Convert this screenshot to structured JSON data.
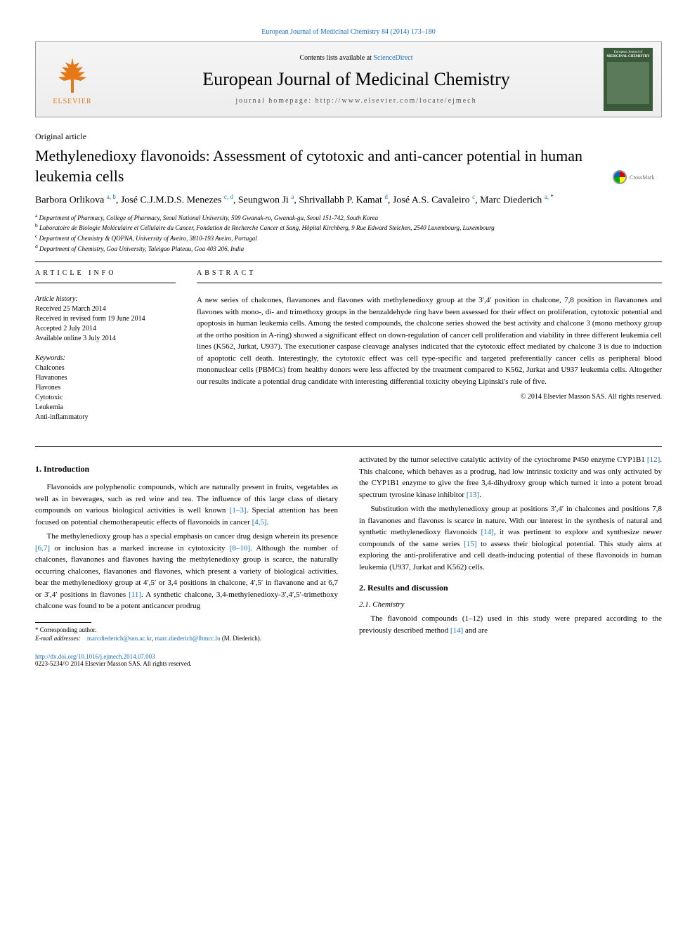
{
  "top_citation": {
    "text": "European Journal of Medicinal Chemistry 84 (2014) 173–180",
    "link_color": "#1a6eb8"
  },
  "header": {
    "elsevier_label": "ELSEVIER",
    "contents_prefix": "Contents lists available at ",
    "contents_link": "ScienceDirect",
    "journal_title": "European Journal of Medicinal Chemistry",
    "homepage_label": "journal homepage: http://www.elsevier.com/locate/ejmech",
    "cover_top": "European Journal of",
    "cover_mid": "MEDICINAL CHEMISTRY"
  },
  "article_type": "Original article",
  "title": "Methylenedioxy flavonoids: Assessment of cytotoxic and anti-cancer potential in human leukemia cells",
  "crossmark_label": "CrossMark",
  "authors_html": "Barbora Orlikova <sup>a, b</sup>, José C.J.M.D.S. Menezes <sup>c, d</sup>, Seungwon Ji <sup>a</sup>, Shrivallabh P. Kamat <sup>d</sup>, José A.S. Cavaleiro <sup>c</sup>, Marc Diederich <sup>a, <span class=\"star\">*</span></sup>",
  "affiliations": [
    {
      "sup": "a",
      "text": "Department of Pharmacy, College of Pharmacy, Seoul National University, 599 Gwanak-ro, Gwanak-gu, Seoul 151-742, South Korea"
    },
    {
      "sup": "b",
      "text": "Laboratoire de Biologie Moléculaire et Cellulaire du Cancer, Fondation de Recherche Cancer et Sang, Hôpital Kirchberg, 9 Rue Edward Steichen, 2540 Luxembourg, Luxembourg"
    },
    {
      "sup": "c",
      "text": "Department of Chemistry & QOPNA, University of Aveiro, 3810-193 Aveiro, Portugal"
    },
    {
      "sup": "d",
      "text": "Department of Chemistry, Goa University, Taleigao Plateau, Goa 403 206, India"
    }
  ],
  "article_info": {
    "heading": "ARTICLE INFO",
    "history_label": "Article history:",
    "history": [
      "Received 25 March 2014",
      "Received in revised form 19 June 2014",
      "Accepted 2 July 2014",
      "Available online 3 July 2014"
    ],
    "keywords_label": "Keywords:",
    "keywords": [
      "Chalcones",
      "Flavanones",
      "Flavones",
      "Cytotoxic",
      "Leukemia",
      "Anti-inflammatory"
    ]
  },
  "abstract": {
    "heading": "ABSTRACT",
    "text": "A new series of chalcones, flavanones and flavones with methylenedioxy group at the 3′,4′ position in chalcone, 7,8 position in flavanones and flavones with mono-, di- and trimethoxy groups in the benzaldehyde ring have been assessed for their effect on proliferation, cytotoxic potential and apoptosis in human leukemia cells. Among the tested compounds, the chalcone series showed the best activity and chalcone 3 (mono methoxy group at the ortho position in A-ring) showed a significant effect on down-regulation of cancer cell proliferation and viability in three different leukemia cell lines (K562, Jurkat, U937). The executioner caspase cleavage analyses indicated that the cytotoxic effect mediated by chalcone 3 is due to induction of apoptotic cell death. Interestingly, the cytotoxic effect was cell type-specific and targeted preferentially cancer cells as peripheral blood mononuclear cells (PBMCs) from healthy donors were less affected by the treatment compared to K562, Jurkat and U937 leukemia cells. Altogether our results indicate a potential drug candidate with interesting differential toxicity obeying Lipinski's rule of five.",
    "copyright": "© 2014 Elsevier Masson SAS. All rights reserved."
  },
  "body": {
    "left": {
      "sec1_heading": "1. Introduction",
      "p1": "Flavonoids are polyphenolic compounds, which are naturally present in fruits, vegetables as well as in beverages, such as red wine and tea. The influence of this large class of dietary compounds on various biological activities is well known ",
      "p1_ref": "[1–3]",
      "p1b": ". Special attention has been focused on potential chemotherapeutic effects of flavonoids in cancer ",
      "p1b_ref": "[4,5]",
      "p1c": ".",
      "p2": "The methylenedioxy group has a special emphasis on cancer drug design wherein its presence ",
      "p2_ref": "[6,7]",
      "p2b": " or inclusion has a marked increase in cytotoxicity ",
      "p2b_ref": "[8–10]",
      "p2c": ". Although the number of chalcones, flavanones and flavones having the methylenedioxy group is scarce, the naturally occurring chalcones, flavanones and flavones, which present a variety of biological activities, bear the methylenedioxy group at 4′,5′ or 3,4 positions in chalcone, 4′,5′ in flavanone and at 6,7 or 3′,4′ positions in flavones ",
      "p2c_ref": "[11]",
      "p2d": ". A synthetic chalcone, 3,4-methylenedioxy-3′,4′,5′-trimethoxy chalcone was found to be a potent anticancer prodrug"
    },
    "right": {
      "p1": "activated by the tumor selective catalytic activity of the cytochrome P450 enzyme CYP1B1 ",
      "p1_ref": "[12]",
      "p1b": ". This chalcone, which behaves as a prodrug, had low intrinsic toxicity and was only activated by the CYP1B1 enzyme to give the free 3,4-dihydroxy group which turned it into a potent broad spectrum tyrosine kinase inhibitor ",
      "p1b_ref": "[13]",
      "p1c": ".",
      "p2": "Substitution with the methylenedioxy group at positions 3′,4′ in chalcones and positions 7,8 in flavanones and flavones is scarce in nature. With our interest in the synthesis of natural and synthetic methylenedioxy flavonoids ",
      "p2_ref": "[14]",
      "p2b": ", it was pertinent to explore and synthesize newer compounds of the same series ",
      "p2b_ref": "[15]",
      "p2c": " to assess their biological potential. This study aims at exploring the anti-proliferative and cell death-inducing potential of these flavonoids in human leukemia (U937, Jurkat and K562) cells.",
      "sec2_heading": "2. Results and discussion",
      "sec21_heading": "2.1. Chemistry",
      "p3": "The flavonoid compounds (1–12) used in this study were prepared according to the previously described method ",
      "p3_ref": "[14]",
      "p3b": " and are"
    }
  },
  "footnote": {
    "corr_label": "* Corresponding author.",
    "email_label": "E-mail addresses:",
    "email1": "marcdiederich@snu.ac.kr",
    "email_sep": ", ",
    "email2": "marc.diederich@lbmcc.lu",
    "tail": " (M. Diederich)."
  },
  "doi": {
    "url": "http://dx.doi.org/10.1016/j.ejmech.2014.07.003",
    "issn_line": "0223-5234/© 2014 Elsevier Masson SAS. All rights reserved."
  },
  "colors": {
    "link": "#1a6eb8",
    "elsevier": "#e67817",
    "text": "#000000",
    "bg": "#ffffff",
    "rule": "#000000"
  }
}
